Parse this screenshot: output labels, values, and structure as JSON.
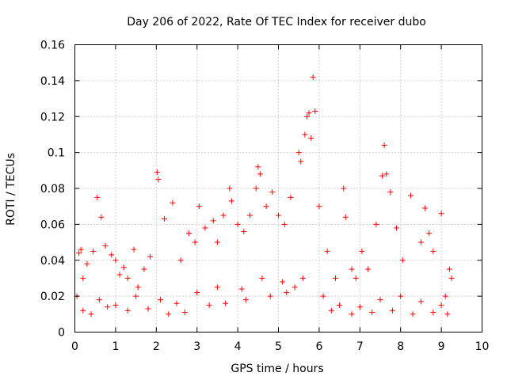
{
  "chart_data": {
    "type": "scatter",
    "title": "Day 206 of 2022, Rate Of TEC Index for receiver dubo",
    "xlabel": "GPS time / hours",
    "ylabel": "ROTI / TECUs",
    "xlim": [
      0,
      10
    ],
    "ylim": [
      0,
      0.16
    ],
    "xticks": [
      "0",
      "1",
      "2",
      "3",
      "4",
      "5",
      "6",
      "7",
      "8",
      "9",
      "10"
    ],
    "yticks": [
      "0",
      "0.02",
      "0.04",
      "0.06",
      "0.08",
      "0.1",
      "0.12",
      "0.14",
      "0.16"
    ],
    "grid": true,
    "marker": "plus",
    "color": "#ff0000",
    "series": [
      {
        "x": [
          0.05,
          0.1,
          0.15,
          0.2,
          0.3,
          0.45,
          0.55,
          0.65,
          0.75,
          0.9,
          1.0,
          1.1,
          1.2,
          1.3,
          1.45,
          1.55,
          1.7,
          1.85,
          2.02,
          2.05,
          2.2,
          2.4,
          2.6,
          2.8,
          2.95,
          3.05,
          3.2,
          3.4,
          3.5,
          3.65,
          3.8,
          3.85,
          4.0,
          4.15,
          4.3,
          4.45,
          4.5,
          4.55,
          4.7,
          4.85,
          5.0,
          5.15,
          5.3,
          5.5,
          5.55,
          5.65,
          5.7,
          5.75,
          5.8,
          5.85,
          5.9,
          6.0,
          6.2,
          6.4,
          6.6,
          6.65,
          6.8,
          6.9,
          7.05,
          7.2,
          7.4,
          7.55,
          7.6,
          7.65,
          7.75,
          7.9,
          8.05,
          8.25,
          8.5,
          8.6,
          8.7,
          8.8,
          9.0,
          9.1,
          9.2,
          9.25,
          0.2,
          0.6,
          1.0,
          1.5,
          2.1,
          2.5,
          3.0,
          3.5,
          4.1,
          4.6,
          5.1,
          5.6,
          6.1,
          6.5,
          7.0,
          7.5,
          8.0,
          8.5,
          9.0,
          0.4,
          0.8,
          1.3,
          1.8,
          2.3,
          2.7,
          3.3,
          3.7,
          4.2,
          4.8,
          5.2,
          5.4,
          6.3,
          6.8,
          7.3,
          7.8,
          8.3,
          8.8,
          9.15
        ],
        "y": [
          0.02,
          0.044,
          0.046,
          0.03,
          0.038,
          0.045,
          0.075,
          0.064,
          0.048,
          0.043,
          0.04,
          0.032,
          0.036,
          0.03,
          0.046,
          0.025,
          0.035,
          0.042,
          0.089,
          0.085,
          0.063,
          0.072,
          0.04,
          0.055,
          0.05,
          0.07,
          0.058,
          0.062,
          0.05,
          0.065,
          0.08,
          0.073,
          0.06,
          0.056,
          0.065,
          0.08,
          0.092,
          0.088,
          0.07,
          0.078,
          0.065,
          0.06,
          0.075,
          0.1,
          0.095,
          0.11,
          0.12,
          0.122,
          0.108,
          0.142,
          0.123,
          0.07,
          0.045,
          0.03,
          0.08,
          0.064,
          0.035,
          0.03,
          0.045,
          0.035,
          0.06,
          0.087,
          0.104,
          0.088,
          0.078,
          0.058,
          0.04,
          0.076,
          0.05,
          0.069,
          0.055,
          0.045,
          0.066,
          0.02,
          0.035,
          0.03,
          0.012,
          0.018,
          0.015,
          0.02,
          0.018,
          0.016,
          0.022,
          0.025,
          0.024,
          0.03,
          0.028,
          0.03,
          0.02,
          0.015,
          0.014,
          0.018,
          0.02,
          0.017,
          0.015,
          0.01,
          0.014,
          0.012,
          0.013,
          0.01,
          0.011,
          0.015,
          0.016,
          0.018,
          0.02,
          0.022,
          0.025,
          0.012,
          0.01,
          0.011,
          0.012,
          0.01,
          0.011,
          0.01
        ]
      }
    ]
  }
}
